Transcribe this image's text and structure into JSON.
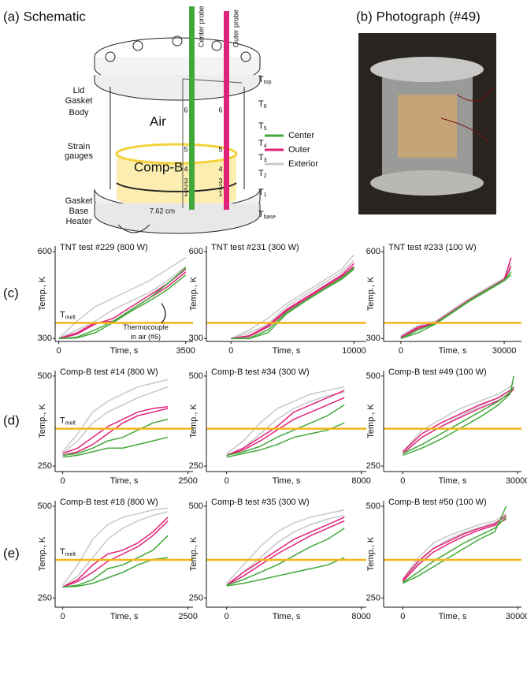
{
  "panel_a": {
    "label": "(a) Schematic"
  },
  "panel_b": {
    "label": "(b) Photograph (#49)"
  },
  "row_labels": [
    "(c)",
    "(d)",
    "(e)"
  ],
  "schematic": {
    "parts": [
      "Lid",
      "Gasket",
      "Body",
      "Strain",
      "gauges",
      "Gasket",
      "Base",
      "Heater"
    ],
    "air": "Air",
    "fill": "Comp-B",
    "center_probe": "Center probe",
    "outer_probe": "Outer probe",
    "diameter": "7.62 cm",
    "temps": [
      {
        "base": "T",
        "sub": "top"
      },
      {
        "base": "T",
        "sub": "6"
      },
      {
        "base": "T",
        "sub": "5"
      },
      {
        "base": "T",
        "sub": "4"
      },
      {
        "base": "T",
        "sub": "3"
      },
      {
        "base": "T",
        "sub": "2"
      },
      {
        "base": "T",
        "sub": "1"
      },
      {
        "base": "T",
        "sub": "base"
      }
    ],
    "probe_numbers": [
      "6",
      "5",
      "4",
      "3",
      "2",
      "1"
    ],
    "legend": [
      {
        "name": "Center",
        "color": "#43a83a"
      },
      {
        "name": "Outer",
        "color": "#e0237a"
      },
      {
        "name": "Exterior",
        "color": "#c8c8c8"
      }
    ]
  },
  "chart_data": [
    {
      "type": "line",
      "title": "TNT test #229 (800 W)",
      "xlabel": "Time, s",
      "ylabel": "Temp., K",
      "x": [
        0,
        500,
        1000,
        1500,
        2000,
        2500,
        3000,
        3500
      ],
      "xlim": [
        -100,
        3700
      ],
      "xticks": [
        0,
        3500
      ],
      "ylim": [
        290,
        620
      ],
      "yticks": [
        300,
        600
      ],
      "tmelt": 354,
      "tmelt_color": "#f3b51b",
      "tmelt_label": {
        "base": "T",
        "sub": "melt"
      },
      "annotation": [
        "Thermocouple",
        "in air (#6)"
      ],
      "series": [
        {
          "color": "#c8c8c8",
          "values": [
            300,
            360,
            410,
            440,
            470,
            500,
            540,
            580
          ]
        },
        {
          "color": "#c8c8c8",
          "values": [
            300,
            330,
            360,
            400,
            430,
            460,
            500,
            550
          ]
        },
        {
          "color": "#e0237a",
          "values": [
            300,
            315,
            350,
            370,
            410,
            450,
            490,
            540
          ]
        },
        {
          "color": "#e0237a",
          "values": [
            300,
            320,
            355,
            360,
            400,
            440,
            480,
            530
          ]
        },
        {
          "color": "#43a83a",
          "values": [
            300,
            305,
            330,
            360,
            400,
            440,
            490,
            545
          ]
        },
        {
          "color": "#43a83a",
          "values": [
            300,
            302,
            320,
            355,
            395,
            430,
            470,
            520
          ]
        }
      ]
    },
    {
      "type": "line",
      "title": "TNT test #231 (300 W)",
      "xlabel": "Time, s",
      "ylabel": "Temp., K",
      "x": [
        0,
        1500,
        3000,
        4500,
        6000,
        7500,
        9000,
        10000
      ],
      "xlim": [
        -2000,
        11000
      ],
      "xticks": [
        0,
        10000
      ],
      "ylim": [
        290,
        620
      ],
      "yticks": [
        300,
        600
      ],
      "tmelt": 354,
      "tmelt_color": "#f3b51b",
      "series": [
        {
          "color": "#c8c8c8",
          "values": [
            300,
            330,
            370,
            420,
            460,
            500,
            540,
            590
          ]
        },
        {
          "color": "#c8c8c8",
          "values": [
            300,
            320,
            350,
            410,
            450,
            490,
            530,
            570
          ]
        },
        {
          "color": "#e0237a",
          "values": [
            300,
            310,
            345,
            400,
            440,
            480,
            520,
            560
          ]
        },
        {
          "color": "#e0237a",
          "values": [
            300,
            308,
            340,
            395,
            435,
            475,
            515,
            550
          ]
        },
        {
          "color": "#43a83a",
          "values": [
            300,
            302,
            330,
            390,
            430,
            470,
            510,
            545
          ]
        },
        {
          "color": "#43a83a",
          "values": [
            300,
            300,
            320,
            385,
            428,
            468,
            505,
            540
          ]
        }
      ]
    },
    {
      "type": "line",
      "title": "TNT test #233 (100 W)",
      "xlabel": "Time, s",
      "ylabel": "Temp., K",
      "x": [
        0,
        5000,
        10000,
        15000,
        20000,
        25000,
        30000,
        32000
      ],
      "xlim": [
        -5000,
        35000
      ],
      "xticks": [
        0,
        30000
      ],
      "ylim": [
        290,
        620
      ],
      "yticks": [
        300,
        600
      ],
      "tmelt": 354,
      "tmelt_color": "#f3b51b",
      "series": [
        {
          "color": "#c8c8c8",
          "values": [
            310,
            345,
            360,
            400,
            440,
            475,
            510,
            560
          ]
        },
        {
          "color": "#c8c8c8",
          "values": [
            305,
            340,
            355,
            395,
            435,
            470,
            505,
            540
          ]
        },
        {
          "color": "#e0237a",
          "values": [
            305,
            340,
            355,
            395,
            435,
            470,
            505,
            580
          ]
        },
        {
          "color": "#e0237a",
          "values": [
            303,
            335,
            353,
            393,
            433,
            468,
            503,
            550
          ]
        },
        {
          "color": "#43a83a",
          "values": [
            300,
            330,
            352,
            392,
            432,
            468,
            502,
            530
          ]
        },
        {
          "color": "#43a83a",
          "values": [
            300,
            320,
            350,
            390,
            430,
            465,
            500,
            520
          ]
        }
      ]
    },
    {
      "type": "line",
      "title": "Comp-B test #14 (800 W)",
      "xlabel": "Time, s",
      "ylabel": "Temp., K",
      "x": [
        0,
        300,
        600,
        900,
        1200,
        1500,
        1800,
        2100
      ],
      "xlim": [
        -150,
        2600
      ],
      "xticks": [
        0,
        2500
      ],
      "ylim": [
        235,
        515
      ],
      "yticks": [
        250,
        500
      ],
      "tmelt": 354,
      "tmelt_color": "#f3b51b",
      "tmelt_label": {
        "base": "T",
        "sub": "melt"
      },
      "series": [
        {
          "color": "#c8c8c8",
          "values": [
            290,
            340,
            400,
            430,
            450,
            470,
            480,
            490
          ]
        },
        {
          "color": "#c8c8c8",
          "values": [
            285,
            320,
            370,
            400,
            420,
            440,
            455,
            470
          ]
        },
        {
          "color": "#e0237a",
          "values": [
            285,
            300,
            330,
            360,
            380,
            400,
            410,
            415
          ]
        },
        {
          "color": "#e0237a",
          "values": [
            280,
            290,
            310,
            340,
            370,
            390,
            400,
            410
          ]
        },
        {
          "color": "#43a83a",
          "values": [
            280,
            285,
            300,
            320,
            330,
            350,
            370,
            380
          ]
        },
        {
          "color": "#43a83a",
          "values": [
            275,
            280,
            290,
            300,
            300,
            310,
            320,
            330
          ]
        }
      ]
    },
    {
      "type": "line",
      "title": "Comp-B test #34 (300 W)",
      "xlabel": "Time, s",
      "ylabel": "Temp., K",
      "x": [
        0,
        1000,
        2000,
        3000,
        4000,
        5000,
        6000,
        7000
      ],
      "xlim": [
        -1200,
        8300
      ],
      "xticks": [
        0,
        8000
      ],
      "ylim": [
        235,
        515
      ],
      "yticks": [
        250,
        500
      ],
      "tmelt": 354,
      "tmelt_color": "#f3b51b",
      "series": [
        {
          "color": "#c8c8c8",
          "values": [
            285,
            320,
            370,
            410,
            430,
            450,
            460,
            470
          ]
        },
        {
          "color": "#c8c8c8",
          "values": [
            280,
            300,
            340,
            380,
            410,
            430,
            445,
            455
          ]
        },
        {
          "color": "#e0237a",
          "values": [
            280,
            300,
            330,
            360,
            400,
            420,
            440,
            460
          ]
        },
        {
          "color": "#e0237a",
          "values": [
            280,
            295,
            320,
            350,
            380,
            400,
            420,
            440
          ]
        },
        {
          "color": "#43a83a",
          "values": [
            280,
            290,
            305,
            330,
            350,
            370,
            390,
            420
          ]
        },
        {
          "color": "#43a83a",
          "values": [
            275,
            285,
            295,
            310,
            330,
            340,
            350,
            370
          ]
        }
      ]
    },
    {
      "type": "line",
      "title": "Comp-B test #49 (100 W)",
      "xlabel": "Time, s",
      "ylabel": "Temp., K",
      "x": [
        0,
        5000,
        10000,
        15000,
        20000,
        25000,
        28000,
        29000
      ],
      "xlim": [
        -5000,
        31000
      ],
      "xticks": [
        0,
        30000
      ],
      "ylim": [
        235,
        515
      ],
      "yticks": [
        250,
        500
      ],
      "tmelt": 354,
      "tmelt_color": "#f3b51b",
      "series": [
        {
          "color": "#c8c8c8",
          "values": [
            290,
            350,
            380,
            410,
            430,
            450,
            470,
            480
          ]
        },
        {
          "color": "#c8c8c8",
          "values": [
            285,
            330,
            360,
            390,
            415,
            440,
            460,
            470
          ]
        },
        {
          "color": "#e0237a",
          "values": [
            290,
            340,
            370,
            395,
            420,
            440,
            460,
            470
          ]
        },
        {
          "color": "#e0237a",
          "values": [
            285,
            330,
            360,
            385,
            410,
            432,
            452,
            465
          ]
        },
        {
          "color": "#43a83a",
          "values": [
            285,
            310,
            340,
            370,
            400,
            430,
            455,
            470
          ]
        },
        {
          "color": "#43a83a",
          "values": [
            280,
            300,
            325,
            355,
            385,
            420,
            450,
            500
          ]
        }
      ]
    },
    {
      "type": "line",
      "title": "Comp-B test #18 (800 W)",
      "xlabel": "Time, s",
      "ylabel": "Temp., K",
      "x": [
        0,
        300,
        600,
        900,
        1200,
        1500,
        1800,
        2100
      ],
      "xlim": [
        -150,
        2600
      ],
      "xticks": [
        0,
        2500
      ],
      "ylim": [
        225,
        515
      ],
      "yticks": [
        250,
        500
      ],
      "tmelt": 354,
      "tmelt_color": "#f3b51b",
      "tmelt_label": {
        "base": "T",
        "sub": "melt"
      },
      "series": [
        {
          "color": "#c8c8c8",
          "values": [
            285,
            340,
            410,
            450,
            470,
            480,
            490,
            495
          ]
        },
        {
          "color": "#c8c8c8",
          "values": [
            280,
            310,
            360,
            410,
            440,
            460,
            475,
            485
          ]
        },
        {
          "color": "#e0237a",
          "values": [
            280,
            300,
            340,
            370,
            380,
            400,
            430,
            470
          ]
        },
        {
          "color": "#e0237a",
          "values": [
            280,
            295,
            320,
            350,
            370,
            390,
            420,
            460
          ]
        },
        {
          "color": "#43a83a",
          "values": [
            280,
            285,
            300,
            330,
            340,
            360,
            380,
            420
          ]
        },
        {
          "color": "#43a83a",
          "values": [
            280,
            282,
            290,
            305,
            320,
            340,
            355,
            360
          ]
        }
      ]
    },
    {
      "type": "line",
      "title": "Comp-B test #35 (300 W)",
      "xlabel": "Time, s",
      "ylabel": "Temp., K",
      "x": [
        0,
        1000,
        2000,
        3000,
        4000,
        5000,
        6000,
        7000
      ],
      "xlim": [
        -1200,
        8300
      ],
      "xticks": [
        0,
        8000
      ],
      "ylim": [
        225,
        515
      ],
      "yticks": [
        250,
        500
      ],
      "tmelt": 354,
      "tmelt_color": "#f3b51b",
      "series": [
        {
          "color": "#c8c8c8",
          "values": [
            290,
            340,
            390,
            430,
            455,
            470,
            480,
            490
          ]
        },
        {
          "color": "#c8c8c8",
          "values": [
            285,
            320,
            360,
            400,
            430,
            450,
            465,
            475
          ]
        },
        {
          "color": "#e0237a",
          "values": [
            285,
            320,
            350,
            380,
            410,
            430,
            450,
            470
          ]
        },
        {
          "color": "#e0237a",
          "values": [
            285,
            310,
            340,
            370,
            395,
            420,
            440,
            460
          ]
        },
        {
          "color": "#43a83a",
          "values": [
            285,
            300,
            320,
            340,
            365,
            390,
            410,
            440
          ]
        },
        {
          "color": "#43a83a",
          "values": [
            283,
            290,
            300,
            310,
            320,
            330,
            340,
            360
          ]
        }
      ]
    },
    {
      "type": "line",
      "title": "Comp-B test #50 (100 W)",
      "xlabel": "Time, s",
      "ylabel": "Temp., K",
      "x": [
        0,
        4000,
        8000,
        12000,
        16000,
        20000,
        24000,
        27000
      ],
      "xlim": [
        -5000,
        31000
      ],
      "xticks": [
        0,
        30000
      ],
      "ylim": [
        225,
        515
      ],
      "yticks": [
        250,
        500
      ],
      "tmelt": 354,
      "tmelt_color": "#f3b51b",
      "series": [
        {
          "color": "#c8c8c8",
          "values": [
            300,
            360,
            400,
            420,
            435,
            450,
            460,
            480
          ]
        },
        {
          "color": "#c8c8c8",
          "values": [
            295,
            345,
            385,
            410,
            428,
            442,
            455,
            470
          ]
        },
        {
          "color": "#e0237a",
          "values": [
            300,
            350,
            385,
            405,
            425,
            440,
            452,
            475
          ]
        },
        {
          "color": "#e0237a",
          "values": [
            295,
            340,
            375,
            398,
            418,
            435,
            448,
            465
          ]
        },
        {
          "color": "#43a83a",
          "values": [
            292,
            320,
            350,
            375,
            400,
            420,
            440,
            470
          ]
        },
        {
          "color": "#43a83a",
          "values": [
            290,
            310,
            335,
            360,
            385,
            410,
            430,
            500
          ]
        }
      ]
    }
  ]
}
